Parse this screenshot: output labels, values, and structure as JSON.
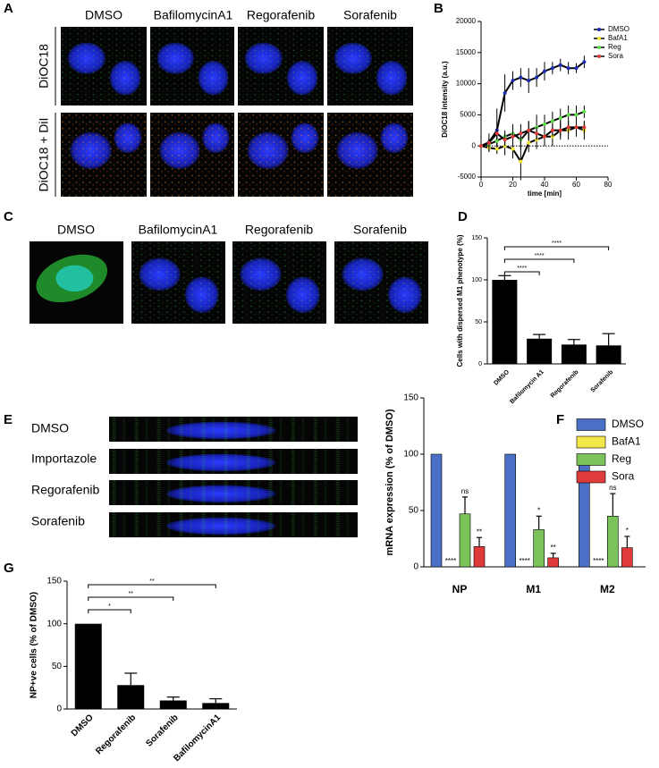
{
  "panel_a": {
    "label": "A",
    "columns": [
      "DMSO",
      "BafilomycinA1",
      "Regorafenib",
      "Sorafenib"
    ],
    "rows": [
      "DiOC18",
      "DiOC18 + DiI"
    ]
  },
  "panel_c": {
    "label": "C",
    "columns": [
      "DMSO",
      "BafilomycinA1",
      "Regorafenib",
      "Sorafenib"
    ]
  },
  "panel_e": {
    "label": "E",
    "rows": [
      "DMSO",
      "Importazole",
      "Regorafenib",
      "Sorafenib"
    ]
  },
  "chart_data": [
    {
      "type": "line",
      "panel_label": "B",
      "x_label": "time [min]",
      "y_label": "DiOC18 intensity (a.u.)",
      "x": [
        0,
        5,
        10,
        15,
        20,
        25,
        30,
        35,
        40,
        45,
        50,
        55,
        60,
        65
      ],
      "xlim": [
        0,
        80
      ],
      "xticks": [
        0,
        20,
        40,
        60,
        80
      ],
      "ylim": [
        -5000,
        20000
      ],
      "yticks": [
        -5000,
        0,
        5000,
        10000,
        15000,
        20000
      ],
      "series": [
        {
          "name": "DMSO",
          "color": "#1a2bb5",
          "values": [
            0,
            600,
            2500,
            8500,
            10500,
            11000,
            10500,
            11000,
            12000,
            12500,
            13000,
            12500,
            12500,
            13500
          ],
          "errors": [
            300,
            600,
            3500,
            3000,
            1500,
            1500,
            2000,
            1500,
            1500,
            1000,
            1000,
            1000,
            800,
            1000
          ]
        },
        {
          "name": "BafA1",
          "color": "#f0e62a",
          "values": [
            0,
            -300,
            -500,
            0,
            -500,
            -2500,
            500,
            1000,
            1500,
            1500,
            2500,
            2500,
            3000,
            2500
          ],
          "errors": [
            300,
            500,
            800,
            1500,
            1500,
            3000,
            1500,
            1500,
            1500,
            1500,
            1500,
            1500,
            1500,
            1500
          ]
        },
        {
          "name": "Reg",
          "color": "#5ee04a",
          "values": [
            0,
            300,
            800,
            1500,
            2000,
            1000,
            2500,
            3000,
            3500,
            4000,
            4500,
            5000,
            5000,
            5500
          ],
          "errors": [
            300,
            500,
            800,
            1000,
            1500,
            1500,
            1500,
            2000,
            1500,
            1500,
            1500,
            1500,
            1500,
            1000
          ]
        },
        {
          "name": "Sora",
          "color": "#e53a3a",
          "values": [
            0,
            500,
            2000,
            1000,
            1500,
            2000,
            2500,
            2000,
            1500,
            2500,
            2500,
            3000,
            3000,
            3000
          ],
          "errors": [
            300,
            1500,
            1000,
            1000,
            1000,
            1500,
            1500,
            1000,
            1000,
            1000,
            1000,
            1000,
            1000,
            1000
          ]
        }
      ]
    },
    {
      "type": "bar",
      "panel_label": "D",
      "y_label": "Cells with dispersed M1 phenotype (%)",
      "categories": [
        "DMSO",
        "Bafilomycin A1",
        "Regorafenib",
        "Sorafenib"
      ],
      "values": [
        100,
        30,
        23,
        22
      ],
      "errors": [
        5,
        5,
        6,
        14
      ],
      "color": "#000000",
      "ylim": [
        0,
        150
      ],
      "yticks": [
        0,
        50,
        100,
        150
      ],
      "significance": [
        {
          "label": "****",
          "pair": [
            "DMSO",
            "Bafilomycin A1"
          ]
        },
        {
          "label": "****",
          "pair": [
            "DMSO",
            "Regorafenib"
          ]
        },
        {
          "label": "****",
          "pair": [
            "DMSO",
            "Sorafenib"
          ]
        }
      ]
    },
    {
      "type": "bar",
      "panel_label": "F",
      "y_label": "mRNA expression (% of DMSO)",
      "categories": [
        "NP",
        "M1",
        "M2"
      ],
      "ylim": [
        0,
        150
      ],
      "yticks": [
        0,
        50,
        100,
        150
      ],
      "series": [
        {
          "name": "DMSO",
          "color": "#4a6fc4",
          "values": [
            100,
            100,
            100
          ],
          "errors": [
            0,
            0,
            0
          ]
        },
        {
          "name": "BafA1",
          "color": "#f5e84a",
          "values": [
            0,
            0,
            0
          ],
          "errors": [
            0,
            0,
            0
          ],
          "significance": [
            "****",
            "****",
            "****"
          ]
        },
        {
          "name": "Reg",
          "color": "#7cc25a",
          "values": [
            47,
            33,
            45
          ],
          "errors": [
            15,
            12,
            20
          ],
          "significance": [
            "ns",
            "*",
            "ns"
          ]
        },
        {
          "name": "Sora",
          "color": "#e03b3b",
          "values": [
            18,
            8,
            17
          ],
          "errors": [
            8,
            4,
            10
          ],
          "significance": [
            "**",
            "**",
            "*"
          ]
        }
      ]
    },
    {
      "type": "bar",
      "panel_label": "G",
      "y_label": "NP+ve cells (% of DMSO)",
      "categories": [
        "DMSO",
        "Regorafenib",
        "Sorafenib",
        "BafilomycinA1"
      ],
      "values": [
        100,
        28,
        10,
        7
      ],
      "errors": [
        0,
        14,
        4,
        5
      ],
      "color": "#000000",
      "ylim": [
        0,
        150
      ],
      "yticks": [
        0,
        50,
        100,
        150
      ],
      "significance": [
        {
          "label": "*",
          "pair": [
            "DMSO",
            "Regorafenib"
          ]
        },
        {
          "label": "**",
          "pair": [
            "DMSO",
            "Sorafenib"
          ]
        },
        {
          "label": "**",
          "pair": [
            "DMSO",
            "BafilomycinA1"
          ]
        }
      ]
    }
  ]
}
